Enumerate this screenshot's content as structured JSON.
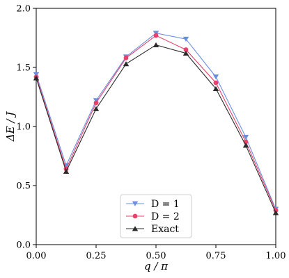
{
  "chart_data": {
    "type": "line",
    "xlabel": "q / π",
    "ylabel": "ΔE / J",
    "xlim": [
      0.0,
      1.0
    ],
    "ylim": [
      0.0,
      2.0
    ],
    "xticks": [
      "0.00",
      "0.25",
      "0.50",
      "0.75",
      "1.00"
    ],
    "yticks": [
      "0.0",
      "0.5",
      "1.0",
      "1.5",
      "2.0"
    ],
    "x": [
      0.0,
      0.125,
      0.25,
      0.375,
      0.5,
      0.625,
      0.75,
      0.875,
      1.0
    ],
    "legend_position": "bottom-center",
    "grid": false,
    "series": [
      {
        "name": "D = 1",
        "color": "#6a8fe0",
        "marker": "triangle-down",
        "values": [
          1.44,
          0.67,
          1.22,
          1.59,
          1.79,
          1.74,
          1.42,
          0.91,
          0.3
        ]
      },
      {
        "name": "D = 2",
        "color": "#e8416b",
        "marker": "circle",
        "values": [
          1.42,
          0.64,
          1.2,
          1.58,
          1.77,
          1.65,
          1.37,
          0.87,
          0.29
        ]
      },
      {
        "name": "Exact",
        "color": "#2b2b2b",
        "marker": "triangle-up",
        "values": [
          1.41,
          0.62,
          1.15,
          1.53,
          1.69,
          1.62,
          1.32,
          0.84,
          0.27
        ]
      }
    ]
  }
}
